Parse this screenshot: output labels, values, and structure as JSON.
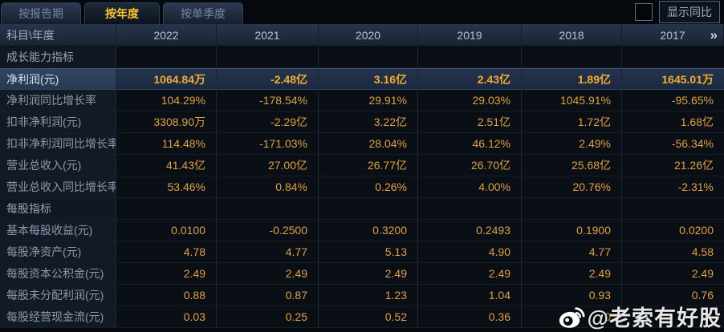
{
  "tabs": [
    {
      "label": "按报告期",
      "active": false
    },
    {
      "label": "按年度",
      "active": true
    },
    {
      "label": "按单季度",
      "active": false
    }
  ],
  "controls": {
    "checkbox_checked": false,
    "yoy_button_label": "显示同比"
  },
  "table": {
    "corner_header": "科目\\年度",
    "year_headers": [
      "2022",
      "2021",
      "2020",
      "2019",
      "2018",
      "2017"
    ],
    "more_icon": "»",
    "rows": [
      {
        "type": "section",
        "label": "成长能力指标",
        "values": [
          "",
          "",
          "",
          "",
          "",
          ""
        ]
      },
      {
        "type": "data",
        "highlight": true,
        "label": "净利润(元)",
        "values": [
          "1064.84万",
          "-2.48亿",
          "3.16亿",
          "2.43亿",
          "1.89亿",
          "1645.01万"
        ]
      },
      {
        "type": "data",
        "highlight": false,
        "label": "净利润同比增长率",
        "values": [
          "104.29%",
          "-178.54%",
          "29.91%",
          "29.03%",
          "1045.91%",
          "-95.65%"
        ]
      },
      {
        "type": "data",
        "highlight": false,
        "label": "扣非净利润(元)",
        "values": [
          "3308.90万",
          "-2.29亿",
          "3.22亿",
          "2.51亿",
          "1.72亿",
          "1.68亿"
        ]
      },
      {
        "type": "data",
        "highlight": false,
        "label": "扣非净利润同比增长率",
        "values": [
          "114.48%",
          "-171.03%",
          "28.04%",
          "46.12%",
          "2.49%",
          "-56.34%"
        ]
      },
      {
        "type": "data",
        "highlight": false,
        "label": "营业总收入(元)",
        "values": [
          "41.43亿",
          "27.00亿",
          "26.77亿",
          "26.70亿",
          "25.68亿",
          "21.26亿"
        ]
      },
      {
        "type": "data",
        "highlight": false,
        "label": "营业总收入同比增长率",
        "values": [
          "53.46%",
          "0.84%",
          "0.26%",
          "4.00%",
          "20.76%",
          "-2.31%"
        ]
      },
      {
        "type": "section",
        "label": "每股指标",
        "values": [
          "",
          "",
          "",
          "",
          "",
          ""
        ]
      },
      {
        "type": "data",
        "highlight": false,
        "label": "基本每股收益(元)",
        "values": [
          "0.0100",
          "-0.2500",
          "0.3200",
          "0.2493",
          "0.1900",
          "0.0200"
        ]
      },
      {
        "type": "data",
        "highlight": false,
        "label": "每股净资产(元)",
        "values": [
          "4.78",
          "4.77",
          "5.13",
          "4.90",
          "4.77",
          "4.58"
        ]
      },
      {
        "type": "data",
        "highlight": false,
        "label": "每股资本公积金(元)",
        "values": [
          "2.49",
          "2.49",
          "2.49",
          "2.49",
          "2.49",
          "2.49"
        ]
      },
      {
        "type": "data",
        "highlight": false,
        "label": "每股未分配利润(元)",
        "values": [
          "0.88",
          "0.87",
          "1.23",
          "1.04",
          "0.93",
          "0.76"
        ]
      },
      {
        "type": "data",
        "highlight": false,
        "label": "每股经营现金流(元)",
        "values": [
          "0.03",
          "0.25",
          "0.52",
          "0.36",
          "0",
          ""
        ]
      }
    ]
  },
  "watermark": {
    "handle": "@老索有好股"
  },
  "colors": {
    "accent_value": "#dfa049",
    "accent_value_bold": "#f3ac33",
    "active_tab_text": "#f6c42d",
    "highlight_row_bg": "#273a53",
    "header_bg": "#27354b",
    "page_bg": "#05080d"
  }
}
